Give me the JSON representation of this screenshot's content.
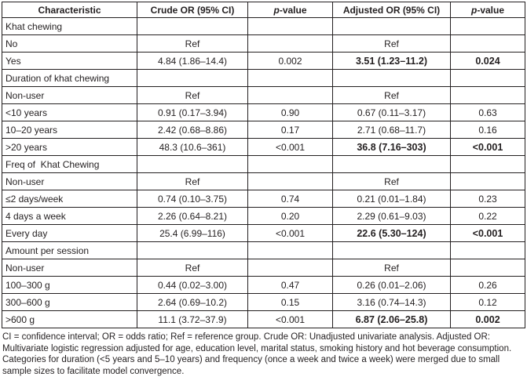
{
  "table": {
    "headers": {
      "characteristic": "Characteristic",
      "crude_or": "Crude OR (95% CI)",
      "p_italic": "p",
      "p_rest": "-value",
      "adjusted_or": "Adjusted OR (95% CI)"
    },
    "rows": [
      {
        "characteristic": "Khat chewing",
        "section": true
      },
      {
        "characteristic": "No",
        "crude": "Ref",
        "adjusted": "Ref"
      },
      {
        "characteristic": "Yes",
        "crude": "4.84 (1.86–14.4)",
        "p1": "0.002",
        "adjusted": "3.51 (1.23–11.2)",
        "p2": "0.024",
        "bold": true
      },
      {
        "characteristic": "Duration of khat chewing",
        "section": true
      },
      {
        "characteristic": "Non-user",
        "crude": "Ref",
        "adjusted": "Ref"
      },
      {
        "characteristic": "<10 years",
        "crude": "0.91 (0.17–3.94)",
        "p1": "0.90",
        "adjusted": "0.67 (0.11–3.17)",
        "p2": "0.63"
      },
      {
        "characteristic": "10–20 years",
        "crude": "2.42 (0.68–8.86)",
        "p1": "0.17",
        "adjusted": "2.71 (0.68–11.7)",
        "p2": "0.16"
      },
      {
        "characteristic": ">20 years",
        "crude": "48.3 (10.6–361)",
        "p1": "<0.001",
        "adjusted": "36.8 (7.16–303)",
        "p2": "<0.001",
        "bold": true
      },
      {
        "characteristic": "Freq of  Khat Chewing",
        "section": true
      },
      {
        "characteristic": "Non-user",
        "crude": "Ref",
        "adjusted": "Ref"
      },
      {
        "characteristic": "≤2 days/week",
        "crude": "0.74 (0.10–3.75)",
        "p1": "0.74",
        "adjusted": "0.21 (0.01–1.84)",
        "p2": "0.23"
      },
      {
        "characteristic": "4 days a week",
        "crude": "2.26 (0.64–8.21)",
        "p1": "0.20",
        "adjusted": "2.29 (0.61–9.03)",
        "p2": "0.22"
      },
      {
        "characteristic": "Every day",
        "crude": "25.4 (6.99–116)",
        "p1": "<0.001",
        "adjusted": "22.6 (5.30–124)",
        "p2": "<0.001",
        "bold": true
      },
      {
        "characteristic": "Amount per session",
        "section": true
      },
      {
        "characteristic": "Non-user",
        "crude": "Ref",
        "adjusted": "Ref"
      },
      {
        "characteristic": "100–300 g",
        "crude": "0.44 (0.02–3.00)",
        "p1": "0.47",
        "adjusted": "0.26 (0.01–2.06)",
        "p2": "0.26"
      },
      {
        "characteristic": "300–600 g",
        "crude": "2.64 (0.69–10.2)",
        "p1": "0.15",
        "adjusted": "3.16 (0.74–14.3)",
        "p2": "0.12"
      },
      {
        "characteristic": ">600 g",
        "crude": "11.1 (3.72–37.9)",
        "p1": "<0.001",
        "adjusted": "6.87 (2.06–25.8)",
        "p2": "0.002",
        "bold": true
      }
    ]
  },
  "footnote": "CI = confidence interval; OR = odds ratio; Ref = reference group. Crude OR: Unadjusted univariate analysis. Adjusted OR: Multivariate logistic regression adjusted for age, education level, marital status, smoking history and hot beverage consumption. Categories for duration (<5 years and 5–10 years) and frequency (once a week and twice a week) were merged due to small sample sizes to facilitate model convergence.",
  "colors": {
    "text": "#231f20",
    "border": "#231f20",
    "background": "#ffffff"
  }
}
